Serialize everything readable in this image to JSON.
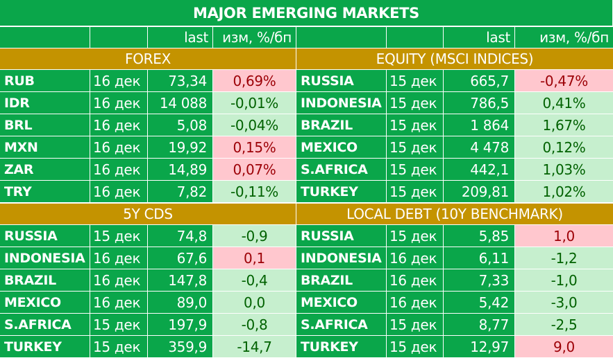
{
  "title": "MAJOR   EMERGING MARKETS",
  "header": {
    "left_last": "last",
    "left_change": "изм, %/бп",
    "right_last": "last",
    "right_change": "изм, %/бп"
  },
  "sections": {
    "forex": "FOREX",
    "equity": "EQUITY (MSCI INDICES)",
    "cds": "5Y CDS",
    "debt": "LOCAL DEBT (10Y BENCHMARK)"
  },
  "colors": {
    "green": "#0aa64a",
    "gold": "#c49300",
    "positive_bg": "#ffc7ce",
    "negative_bg": "#c6efce"
  },
  "blocks": [
    {
      "left": [
        {
          "name": "RUB",
          "date": "16 дек",
          "last": "73,34",
          "change": "0,69%",
          "dir": "pos"
        },
        {
          "name": "IDR",
          "date": "16 дек",
          "last": "14 088",
          "change": "-0,01%",
          "dir": "neg"
        },
        {
          "name": "BRL",
          "date": "16 дек",
          "last": "5,08",
          "change": "-0,04%",
          "dir": "neg"
        },
        {
          "name": "MXN",
          "date": "16 дек",
          "last": "19,92",
          "change": "0,15%",
          "dir": "pos"
        },
        {
          "name": "ZAR",
          "date": "16 дек",
          "last": "14,89",
          "change": "0,07%",
          "dir": "pos"
        },
        {
          "name": "TRY",
          "date": "16 дек",
          "last": "7,82",
          "change": "-0,11%",
          "dir": "neg"
        }
      ],
      "right": [
        {
          "name": "RUSSIA",
          "date": "15 дек",
          "last": "665,7",
          "change": "-0,47%",
          "dir": "pos"
        },
        {
          "name": "INDONESIA",
          "date": "15 дек",
          "last": "786,5",
          "change": "0,41%",
          "dir": "neg"
        },
        {
          "name": "BRAZIL",
          "date": "15 дек",
          "last": "1 864",
          "change": "1,67%",
          "dir": "neg"
        },
        {
          "name": "MEXICO",
          "date": "15 дек",
          "last": "4 478",
          "change": "0,12%",
          "dir": "neg"
        },
        {
          "name": "S.AFRICA",
          "date": "15 дек",
          "last": "442,1",
          "change": "1,03%",
          "dir": "neg"
        },
        {
          "name": "TURKEY",
          "date": "15 дек",
          "last": "209,81",
          "change": "1,02%",
          "dir": "neg"
        }
      ]
    },
    {
      "left": [
        {
          "name": "RUSSIA",
          "date": "15 дек",
          "last": "74,8",
          "change": "-0,9",
          "dir": "neg"
        },
        {
          "name": "INDONESIA",
          "date": "16 дек",
          "last": "67,6",
          "change": "0,1",
          "dir": "pos"
        },
        {
          "name": "BRAZIL",
          "date": "16 дек",
          "last": "147,8",
          "change": "-0,4",
          "dir": "neg"
        },
        {
          "name": "MEXICO",
          "date": "16 дек",
          "last": "89,0",
          "change": "0,0",
          "dir": "neg"
        },
        {
          "name": "S.AFRICA",
          "date": "15 дек",
          "last": "197,9",
          "change": "-0,8",
          "dir": "neg"
        },
        {
          "name": "TURKEY",
          "date": "15 дек",
          "last": "359,9",
          "change": "-14,7",
          "dir": "neg"
        }
      ],
      "right": [
        {
          "name": "RUSSIA",
          "date": "15 дек",
          "last": "5,85",
          "change": "1,0",
          "dir": "pos"
        },
        {
          "name": "INDONESIA",
          "date": "16 дек",
          "last": "6,11",
          "change": "-1,2",
          "dir": "neg"
        },
        {
          "name": "BRAZIL",
          "date": "16 дек",
          "last": "7,33",
          "change": "-1,0",
          "dir": "neg"
        },
        {
          "name": "MEXICO",
          "date": "16 дек",
          "last": "5,42",
          "change": "-3,0",
          "dir": "neg"
        },
        {
          "name": "S.AFRICA",
          "date": "15 дек",
          "last": "8,77",
          "change": "-2,5",
          "dir": "neg"
        },
        {
          "name": "TURKEY",
          "date": "15 дек",
          "last": "12,97",
          "change": "9,0",
          "dir": "pos"
        }
      ]
    }
  ]
}
